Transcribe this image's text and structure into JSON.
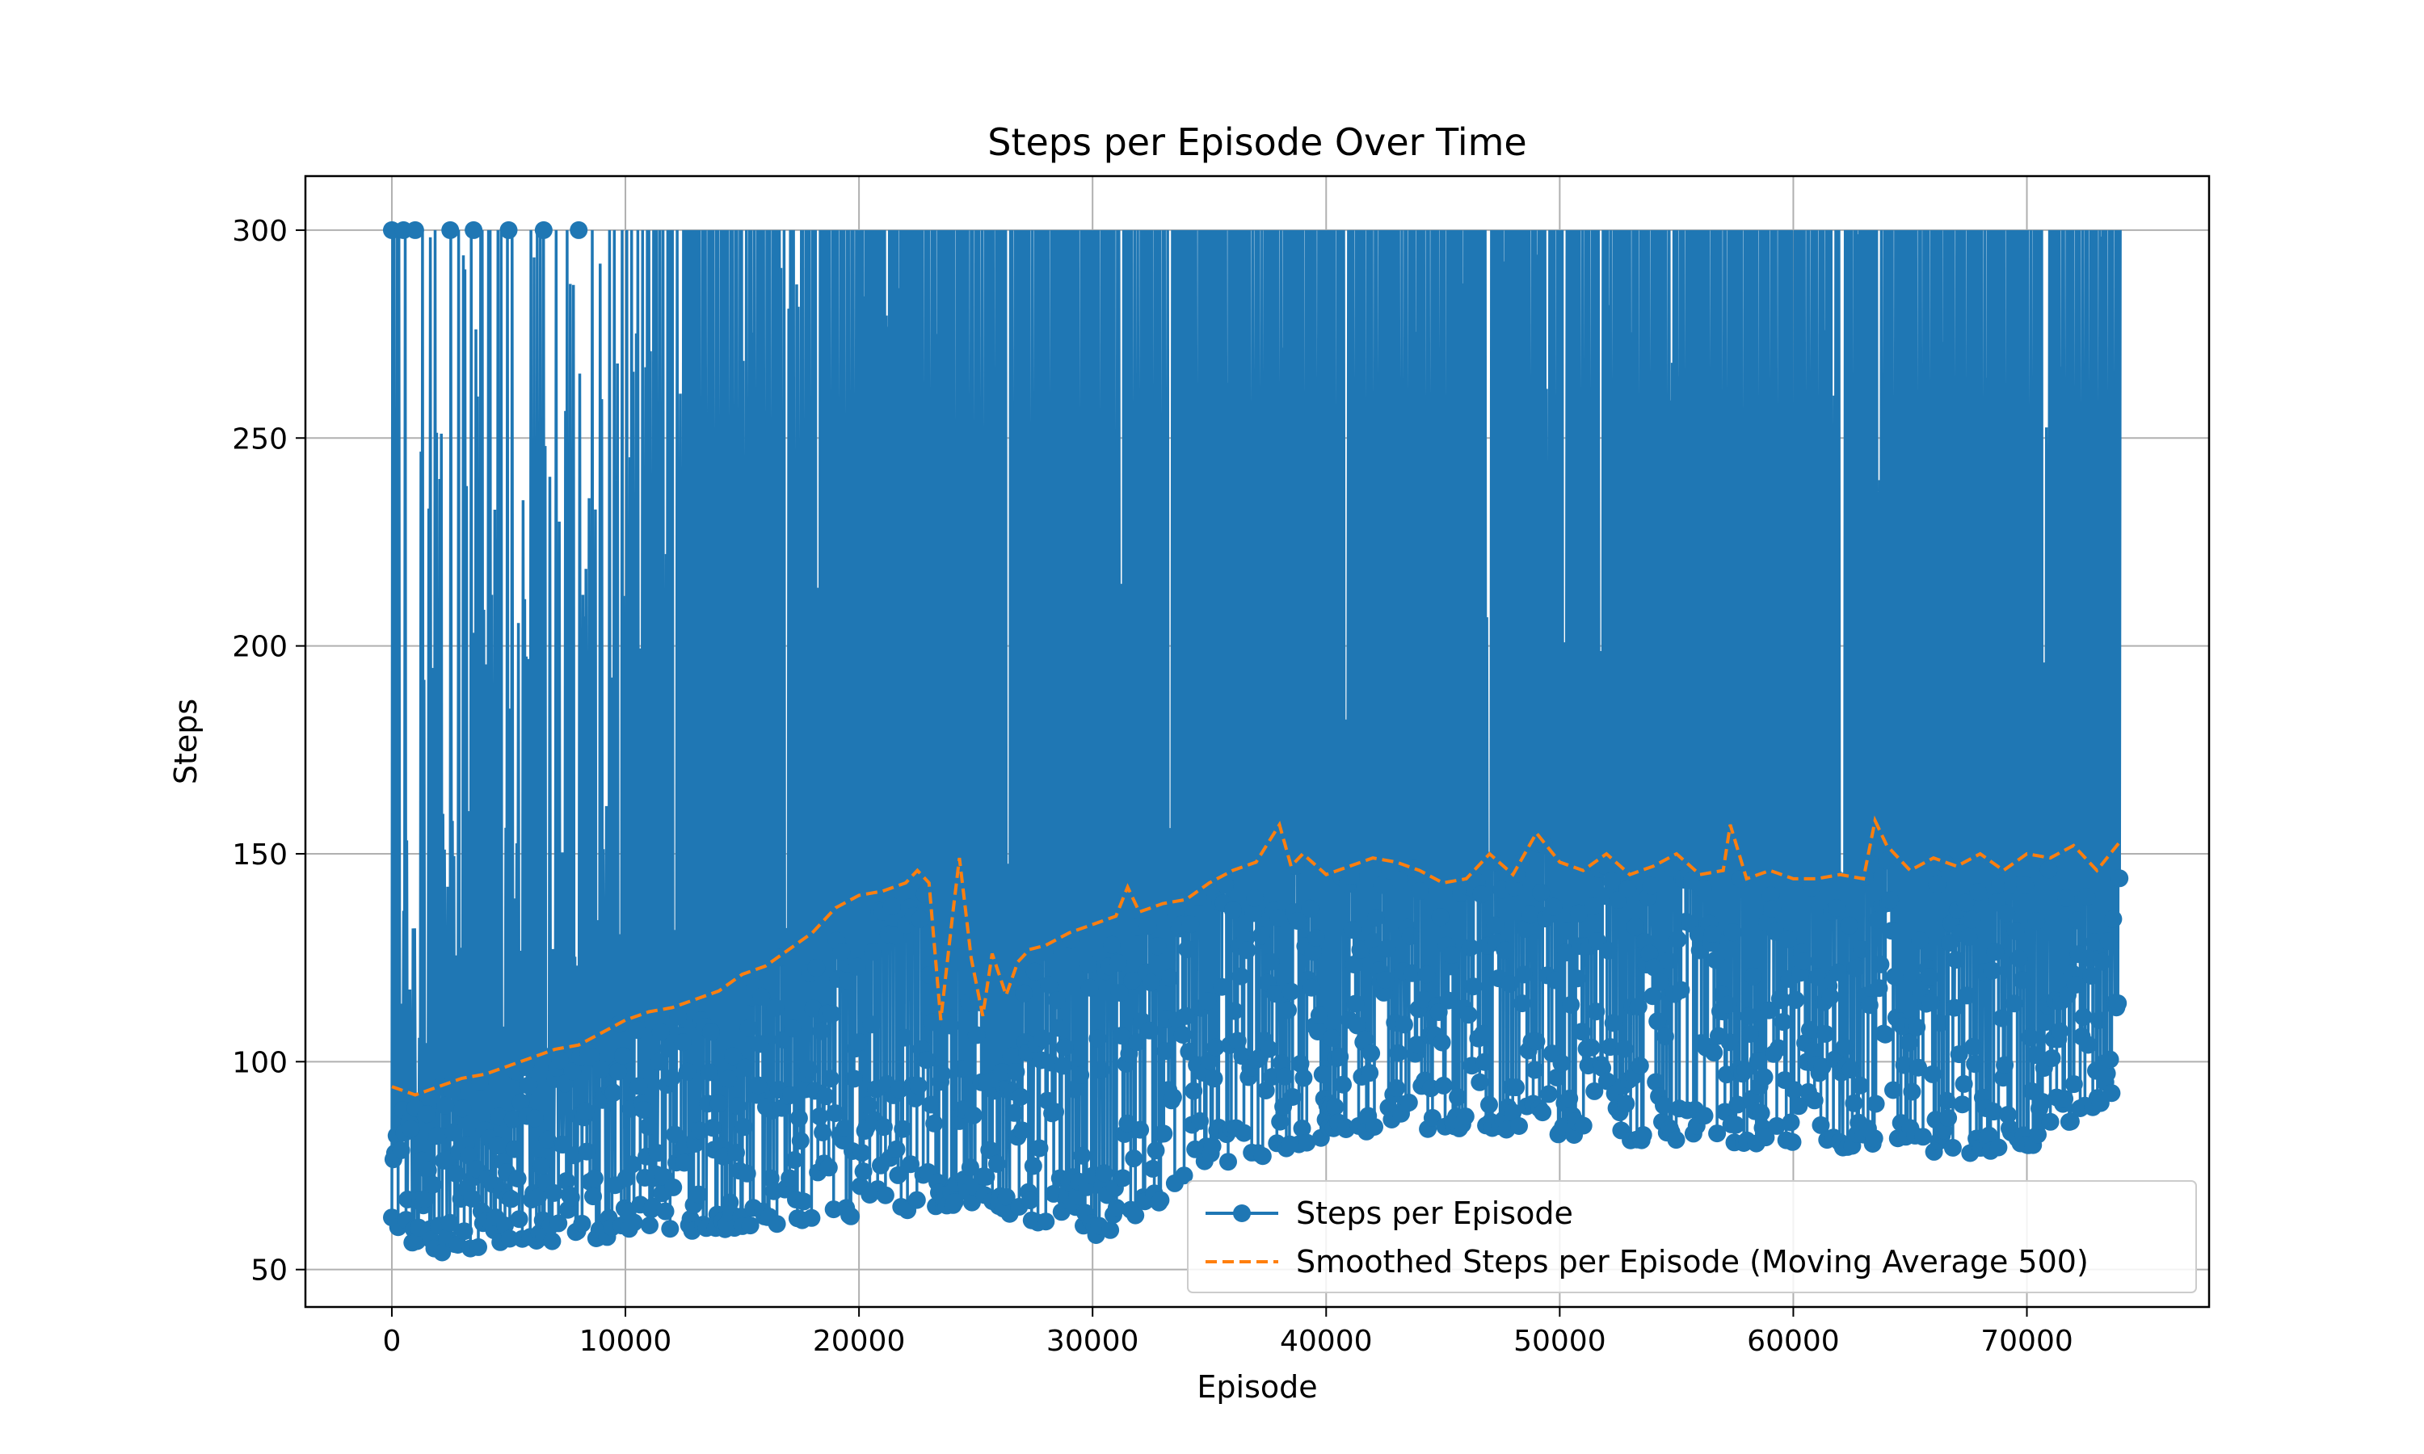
{
  "chart_data": {
    "type": "line",
    "title": "Steps per Episode Over Time",
    "xlabel": "Episode",
    "ylabel": "Steps",
    "xlim": [
      -3700,
      77800
    ],
    "ylim": [
      41,
      313
    ],
    "x_ticks": [
      0,
      10000,
      20000,
      30000,
      40000,
      50000,
      60000,
      70000
    ],
    "x_tick_labels": [
      "0",
      "10000",
      "20000",
      "30000",
      "40000",
      "50000",
      "60000",
      "70000"
    ],
    "y_ticks": [
      50,
      100,
      150,
      200,
      250,
      300
    ],
    "y_tick_labels": [
      "50",
      "100",
      "150",
      "200",
      "250",
      "300"
    ],
    "grid": true,
    "legend_position": "lower right",
    "series": [
      {
        "name": "Steps per Episode",
        "style": "solid line with circle markers",
        "color": "#1f77b4",
        "x_range": [
          0,
          74000
        ],
        "y_range": [
          53,
          300
        ],
        "envelope": {
          "x": [
            0,
            2000,
            5000,
            10000,
            15000,
            20000,
            25000,
            30000,
            35000,
            40000,
            45000,
            50000,
            55000,
            60000,
            65000,
            70000,
            74000
          ],
          "y_max": [
            300,
            300,
            300,
            300,
            300,
            300,
            300,
            300,
            300,
            300,
            300,
            300,
            300,
            300,
            300,
            300,
            300
          ],
          "y_min": [
            57,
            54,
            56,
            58,
            60,
            63,
            66,
            57,
            73,
            82,
            84,
            81,
            81,
            80,
            78,
            78,
            93
          ]
        }
      },
      {
        "name": "Smoothed Steps per Episode (Moving Average 500)",
        "style": "dashed",
        "color": "#ff7f0e",
        "x": [
          0,
          1000,
          2000,
          3000,
          4000,
          5000,
          6000,
          7000,
          8000,
          9000,
          10000,
          11000,
          12000,
          13000,
          14000,
          15000,
          16000,
          17000,
          18000,
          19000,
          20000,
          21000,
          22000,
          22500,
          23000,
          23500,
          24000,
          24300,
          24800,
          25300,
          25700,
          26300,
          26800,
          27300,
          28000,
          29000,
          30000,
          31000,
          31500,
          32000,
          33000,
          34000,
          35000,
          36000,
          37000,
          38000,
          38500,
          39000,
          40000,
          41000,
          42000,
          43000,
          44000,
          45000,
          46000,
          47000,
          48000,
          49000,
          50000,
          51000,
          52000,
          53000,
          54000,
          55000,
          56000,
          57000,
          57300,
          58000,
          59000,
          60000,
          61000,
          62000,
          63000,
          63500,
          64000,
          65000,
          66000,
          67000,
          68000,
          69000,
          70000,
          71000,
          72000,
          73000,
          74000
        ],
        "y": [
          94,
          92,
          94,
          96,
          97,
          99,
          101,
          103,
          104,
          107,
          110,
          112,
          113,
          115,
          117,
          121,
          123,
          127,
          131,
          137,
          140,
          141,
          143,
          146,
          143,
          110,
          135,
          149,
          125,
          111,
          126,
          116,
          124,
          127,
          128,
          131,
          133,
          135,
          142,
          136,
          138,
          139,
          143,
          146,
          148,
          157,
          147,
          150,
          145,
          147,
          149,
          148,
          146,
          143,
          144,
          150,
          145,
          155,
          148,
          146,
          150,
          145,
          147,
          150,
          145,
          146,
          157,
          144,
          146,
          144,
          144,
          145,
          144,
          158,
          152,
          146,
          149,
          147,
          150,
          146,
          150,
          149,
          152,
          146,
          153
        ]
      }
    ]
  }
}
